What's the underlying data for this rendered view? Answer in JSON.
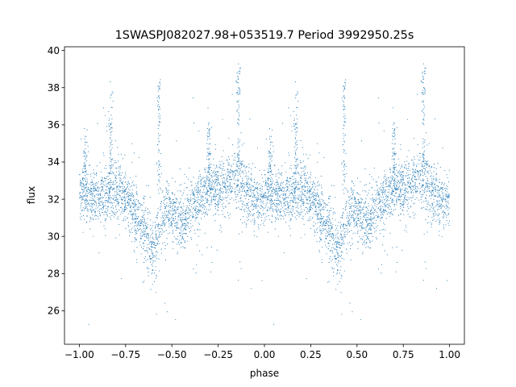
{
  "chart_data": {
    "type": "scatter",
    "title": "1SWASPJ082027.98+053519.7 Period 3992950.25s",
    "xlabel": "phase",
    "ylabel": "flux",
    "xlim": [
      -1.08,
      1.08
    ],
    "ylim": [
      24.2,
      40.2
    ],
    "xticks": [
      -1.0,
      -0.75,
      -0.5,
      -0.25,
      0.0,
      0.25,
      0.5,
      0.75,
      1.0
    ],
    "xtick_labels": [
      "−1.00",
      "−0.75",
      "−0.50",
      "−0.25",
      "0.00",
      "0.25",
      "0.50",
      "0.75",
      "1.00"
    ],
    "yticks": [
      26,
      28,
      30,
      32,
      34,
      36,
      38,
      40
    ],
    "ytick_labels": [
      "26",
      "28",
      "30",
      "32",
      "34",
      "36",
      "38",
      "40"
    ],
    "grid": false,
    "point_color": "#1f77b4",
    "phase_folded": true,
    "profile": {
      "phase": [
        0.0,
        0.04,
        0.08,
        0.12,
        0.16,
        0.2,
        0.24,
        0.28,
        0.32,
        0.36,
        0.4,
        0.44,
        0.48,
        0.52,
        0.56,
        0.6,
        0.64,
        0.68,
        0.72,
        0.76,
        0.8,
        0.84,
        0.88,
        0.92,
        0.96,
        1.0
      ],
      "flux": [
        32.1,
        32.2,
        32.0,
        32.2,
        32.4,
        32.6,
        32.3,
        31.6,
        30.9,
        30.4,
        29.2,
        30.6,
        31.6,
        31.0,
        30.7,
        31.6,
        31.9,
        32.4,
        32.7,
        32.6,
        32.8,
        33.1,
        32.8,
        32.3,
        31.8,
        32.1
      ],
      "scatter": [
        0.7,
        0.7,
        0.7,
        0.7,
        0.8,
        0.8,
        0.8,
        0.8,
        0.8,
        0.8,
        0.9,
        0.8,
        0.7,
        0.7,
        0.7,
        0.7,
        0.7,
        0.8,
        0.8,
        0.8,
        0.8,
        0.8,
        0.8,
        0.8,
        0.7,
        0.7
      ]
    },
    "flares": [
      {
        "phase": 0.17,
        "flux": 37.6
      },
      {
        "phase": 0.43,
        "flux": 38.5
      },
      {
        "phase": 0.86,
        "flux": 39.2
      },
      {
        "phase": 0.7,
        "flux": 36.0
      },
      {
        "phase": 0.03,
        "flux": 35.4
      }
    ]
  }
}
